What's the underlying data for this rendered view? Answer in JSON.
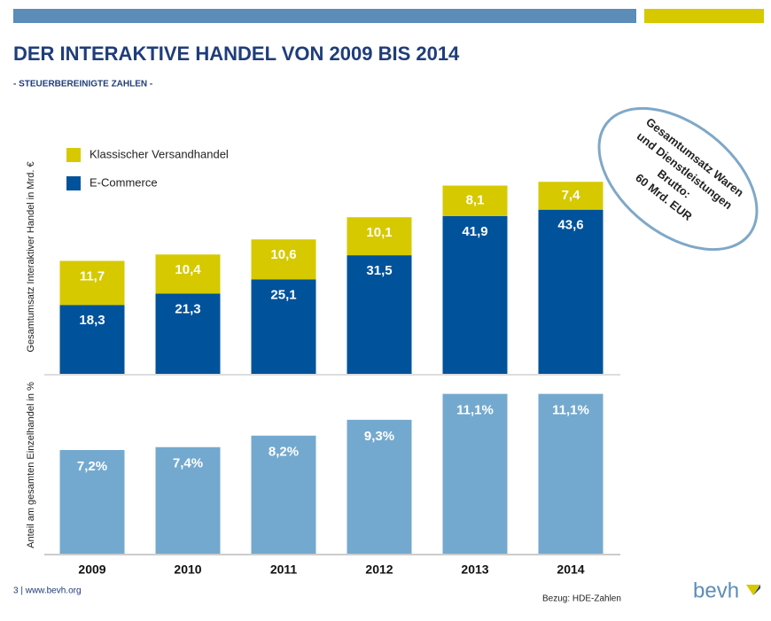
{
  "title": "DER INTERAKTIVE HANDEL VON 2009 BIS 2014",
  "subtitle": "- STEUERBEREINIGTE ZAHLEN -",
  "annotation": [
    "Gesamtumsatz Waren",
    "und Dienstleistungen",
    "Brutto:",
    "60 Mrd. EUR"
  ],
  "footer": "3 | www.bevh.org",
  "source": "Bezug: HDE-Zahlen",
  "logo": "bevh",
  "chart_data": [
    {
      "type": "stacked_bar",
      "ylabel": "Gesamtumsatz Interaktiver Handel in Mrd. €",
      "legend": "upper left",
      "ylim": [
        0,
        64
      ],
      "series": [
        {
          "name": "E-Commerce",
          "color": "#00529b",
          "values": [
            18.3,
            21.3,
            25.1,
            31.5,
            41.9,
            43.6
          ],
          "value_labels": [
            "18,3",
            "21,3",
            "25,1",
            "31,5",
            "41,9",
            "43,6"
          ]
        },
        {
          "name": "Klassischer Versandhandel",
          "color": "#d6c900",
          "values": [
            11.7,
            10.4,
            10.6,
            10.1,
            8.1,
            7.4
          ],
          "value_labels": [
            "11,7",
            "10,4",
            "10,6",
            "10,1",
            "8,1",
            "7,4"
          ]
        }
      ]
    },
    {
      "type": "bar",
      "ylabel": "Anteil am gesamten Einzelhandel in %",
      "categories": [
        "2009",
        "2010",
        "2011",
        "2012",
        "2013",
        "2014"
      ],
      "values": [
        7.2,
        7.4,
        8.2,
        9.3,
        11.1,
        11.1
      ],
      "value_labels": [
        "7,2%",
        "7,4%",
        "8,2%",
        "9,3%",
        "11,1%",
        "11,1%"
      ],
      "color": "#74a9cf",
      "ylim": [
        0,
        12
      ]
    }
  ]
}
